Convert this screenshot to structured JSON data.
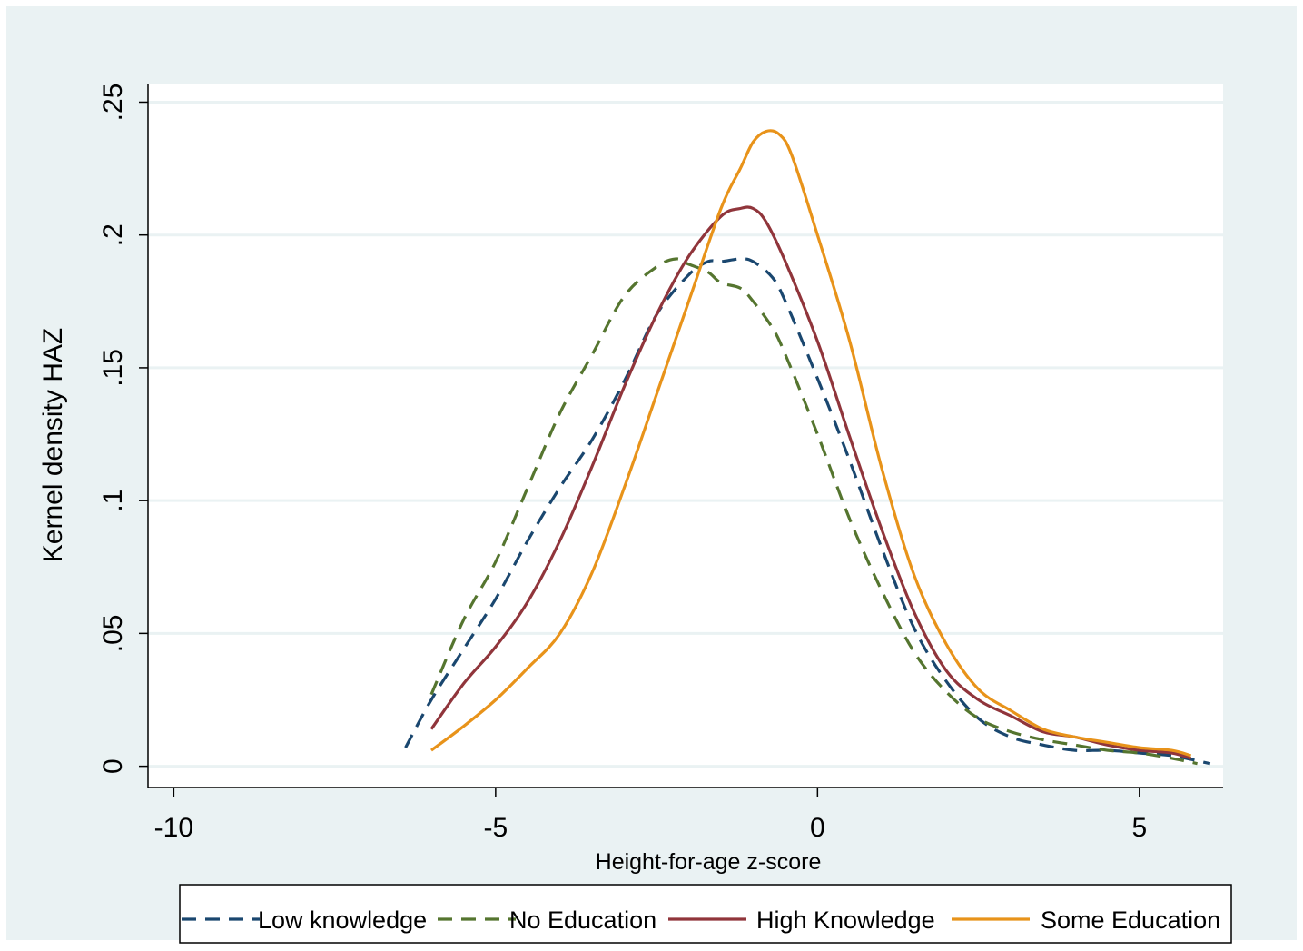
{
  "chart_data": {
    "type": "line",
    "title": "",
    "xlabel": "Height-for-age z-score",
    "ylabel": "Kernel density HAZ",
    "xlim": [
      -10.4,
      6.3
    ],
    "ylim": [
      -0.008,
      0.257
    ],
    "xticks": [
      -10,
      -5,
      0,
      5
    ],
    "xtick_labels": [
      "-10",
      "-5",
      "0",
      "5"
    ],
    "yticks": [
      0,
      0.05,
      0.1,
      0.15,
      0.2,
      0.25
    ],
    "ytick_labels": [
      "0",
      ".05",
      ".1",
      ".15",
      ".2",
      ".25"
    ],
    "grid": true,
    "legend_position": "bottom",
    "series": [
      {
        "name": "Low knowledge",
        "color": "#1a476f",
        "dash": "dashed",
        "x": [
          -6.4,
          -6.0,
          -5.5,
          -5.0,
          -4.5,
          -4.0,
          -3.5,
          -3.0,
          -2.5,
          -2.0,
          -1.7,
          -1.5,
          -1.2,
          -1.0,
          -0.7,
          -0.5,
          0.0,
          0.5,
          1.0,
          1.5,
          2.0,
          2.5,
          3.0,
          3.5,
          4.0,
          4.5,
          5.0,
          5.5,
          6.1
        ],
        "y": [
          0.007,
          0.025,
          0.044,
          0.063,
          0.085,
          0.105,
          0.123,
          0.145,
          0.17,
          0.185,
          0.19,
          0.19,
          0.191,
          0.19,
          0.184,
          0.175,
          0.146,
          0.115,
          0.082,
          0.052,
          0.032,
          0.018,
          0.011,
          0.008,
          0.006,
          0.006,
          0.005,
          0.004,
          0.001
        ]
      },
      {
        "name": "No Education",
        "color": "#55752f",
        "dash": "dashed",
        "x": [
          -6.0,
          -5.5,
          -5.0,
          -4.5,
          -4.0,
          -3.5,
          -3.0,
          -2.5,
          -2.2,
          -2.0,
          -1.7,
          -1.5,
          -1.2,
          -1.0,
          -0.7,
          -0.5,
          0.0,
          0.5,
          1.0,
          1.5,
          2.0,
          2.5,
          3.0,
          3.5,
          4.0,
          4.5,
          5.0,
          5.5,
          5.9
        ],
        "y": [
          0.027,
          0.055,
          0.077,
          0.105,
          0.133,
          0.155,
          0.177,
          0.188,
          0.191,
          0.189,
          0.186,
          0.182,
          0.18,
          0.175,
          0.165,
          0.155,
          0.125,
          0.093,
          0.066,
          0.043,
          0.028,
          0.018,
          0.013,
          0.01,
          0.008,
          0.006,
          0.005,
          0.003,
          0.001
        ]
      },
      {
        "name": "High Knowledge",
        "color": "#90353b",
        "dash": "solid",
        "x": [
          -6.0,
          -5.5,
          -5.0,
          -4.5,
          -4.0,
          -3.5,
          -3.0,
          -2.5,
          -2.0,
          -1.5,
          -1.2,
          -1.0,
          -0.8,
          -0.5,
          0.0,
          0.5,
          1.0,
          1.5,
          2.0,
          2.5,
          3.0,
          3.5,
          4.0,
          4.5,
          5.0,
          5.5,
          5.8
        ],
        "y": [
          0.014,
          0.031,
          0.045,
          0.062,
          0.085,
          0.113,
          0.143,
          0.17,
          0.192,
          0.207,
          0.21,
          0.21,
          0.205,
          0.19,
          0.16,
          0.124,
          0.089,
          0.058,
          0.036,
          0.025,
          0.019,
          0.013,
          0.011,
          0.008,
          0.006,
          0.005,
          0.003
        ]
      },
      {
        "name": "Some Education",
        "color": "#e8931a",
        "dash": "solid",
        "x": [
          -6.0,
          -5.5,
          -5.0,
          -4.5,
          -4.0,
          -3.5,
          -3.0,
          -2.5,
          -2.0,
          -1.5,
          -1.2,
          -1.0,
          -0.8,
          -0.6,
          -0.4,
          0.0,
          0.5,
          1.0,
          1.5,
          2.0,
          2.5,
          3.0,
          3.5,
          4.0,
          4.5,
          5.0,
          5.5,
          5.8
        ],
        "y": [
          0.006,
          0.015,
          0.025,
          0.037,
          0.05,
          0.073,
          0.105,
          0.14,
          0.175,
          0.21,
          0.225,
          0.235,
          0.239,
          0.238,
          0.23,
          0.2,
          0.16,
          0.112,
          0.072,
          0.046,
          0.029,
          0.021,
          0.014,
          0.011,
          0.009,
          0.007,
          0.006,
          0.004
        ]
      }
    ]
  }
}
